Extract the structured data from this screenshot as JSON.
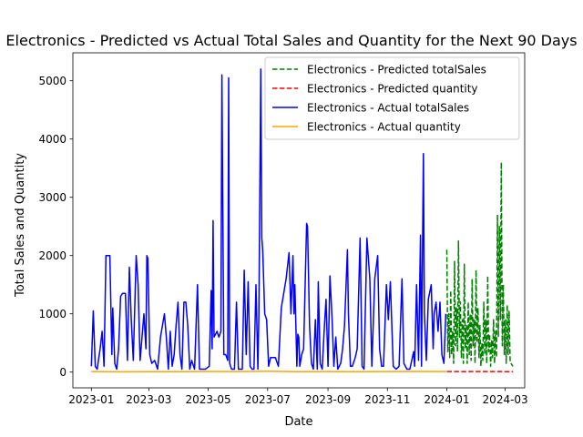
{
  "chart_data": {
    "type": "line",
    "title": "Electronics - Predicted vs Actual Total Sales and Quantity for the Next 90 Days",
    "xlabel": "Date",
    "ylabel": "Total Sales and Quantity",
    "xlim": [
      "2022-12-13",
      "2024-03-21"
    ],
    "ylim": [
      -270,
      5480
    ],
    "x_ticks": [
      "2023-01",
      "2023-03",
      "2023-05",
      "2023-07",
      "2023-09",
      "2023-11",
      "2024-01",
      "2024-03"
    ],
    "y_ticks": [
      0,
      1000,
      2000,
      3000,
      4000,
      5000
    ],
    "grid": false,
    "legend_position": "top-right",
    "series": [
      {
        "name": "Electronics - Predicted totalSales",
        "color": "#008000",
        "style": "dashed",
        "points": [
          [
            "2024-01-01",
            2100
          ],
          [
            "2024-01-02",
            350
          ],
          [
            "2024-01-03",
            1000
          ],
          [
            "2024-01-04",
            250
          ],
          [
            "2024-01-05",
            1400
          ],
          [
            "2024-01-06",
            300
          ],
          [
            "2024-01-07",
            700
          ],
          [
            "2024-01-08",
            150
          ],
          [
            "2024-01-09",
            1900
          ],
          [
            "2024-01-10",
            450
          ],
          [
            "2024-01-11",
            1100
          ],
          [
            "2024-01-12",
            350
          ],
          [
            "2024-01-13",
            2250
          ],
          [
            "2024-01-14",
            600
          ],
          [
            "2024-01-15",
            1200
          ],
          [
            "2024-01-16",
            250
          ],
          [
            "2024-01-17",
            900
          ],
          [
            "2024-01-18",
            150
          ],
          [
            "2024-01-19",
            1850
          ],
          [
            "2024-01-20",
            400
          ],
          [
            "2024-01-21",
            800
          ],
          [
            "2024-01-22",
            150
          ],
          [
            "2024-01-23",
            1200
          ],
          [
            "2024-01-24",
            300
          ],
          [
            "2024-01-25",
            1000
          ],
          [
            "2024-01-26",
            200
          ],
          [
            "2024-01-27",
            1600
          ],
          [
            "2024-01-28",
            450
          ],
          [
            "2024-01-29",
            900
          ],
          [
            "2024-01-30",
            150
          ],
          [
            "2024-01-31",
            1750
          ],
          [
            "2024-02-01",
            500
          ],
          [
            "2024-02-02",
            1100
          ],
          [
            "2024-02-03",
            250
          ],
          [
            "2024-02-04",
            800
          ],
          [
            "2024-02-05",
            100
          ],
          [
            "2024-02-06",
            500
          ],
          [
            "2024-02-07",
            200
          ],
          [
            "2024-02-08",
            1200
          ],
          [
            "2024-02-09",
            300
          ],
          [
            "2024-02-10",
            900
          ],
          [
            "2024-02-11",
            150
          ],
          [
            "2024-02-12",
            1650
          ],
          [
            "2024-02-13",
            350
          ],
          [
            "2024-02-14",
            650
          ],
          [
            "2024-02-15",
            100
          ],
          [
            "2024-02-16",
            550
          ],
          [
            "2024-02-17",
            250
          ],
          [
            "2024-02-18",
            900
          ],
          [
            "2024-02-19",
            150
          ],
          [
            "2024-02-20",
            700
          ],
          [
            "2024-02-21",
            250
          ],
          [
            "2024-02-22",
            2700
          ],
          [
            "2024-02-23",
            600
          ],
          [
            "2024-02-24",
            2500
          ],
          [
            "2024-02-25",
            900
          ],
          [
            "2024-02-26",
            3600
          ],
          [
            "2024-02-27",
            450
          ],
          [
            "2024-02-28",
            1500
          ],
          [
            "2024-02-29",
            300
          ],
          [
            "2024-03-01",
            900
          ],
          [
            "2024-03-02",
            150
          ],
          [
            "2024-03-03",
            1150
          ],
          [
            "2024-03-04",
            300
          ],
          [
            "2024-03-05",
            1050
          ],
          [
            "2024-03-06",
            200
          ],
          [
            "2024-03-07",
            150
          ],
          [
            "2024-03-08",
            120
          ],
          [
            "2024-03-09",
            100
          ]
        ]
      },
      {
        "name": "Electronics - Predicted quantity",
        "color": "#ff0000",
        "style": "dashed",
        "points": [
          [
            "2024-01-01",
            10
          ],
          [
            "2024-01-20",
            8
          ],
          [
            "2024-02-10",
            9
          ],
          [
            "2024-03-01",
            8
          ],
          [
            "2024-03-09",
            7
          ]
        ]
      },
      {
        "name": "Electronics - Actual totalSales",
        "color": "#0000ff",
        "style": "solid",
        "points": [
          [
            "2023-01-01",
            100
          ],
          [
            "2023-01-03",
            1050
          ],
          [
            "2023-01-05",
            100
          ],
          [
            "2023-01-07",
            50
          ],
          [
            "2023-01-10",
            400
          ],
          [
            "2023-01-12",
            700
          ],
          [
            "2023-01-14",
            100
          ],
          [
            "2023-01-16",
            2000
          ],
          [
            "2023-01-20",
            2000
          ],
          [
            "2023-01-22",
            300
          ],
          [
            "2023-01-23",
            1100
          ],
          [
            "2023-01-25",
            150
          ],
          [
            "2023-01-27",
            50
          ],
          [
            "2023-01-29",
            400
          ],
          [
            "2023-01-31",
            1300
          ],
          [
            "2023-02-02",
            1350
          ],
          [
            "2023-02-05",
            1350
          ],
          [
            "2023-02-07",
            200
          ],
          [
            "2023-02-09",
            1800
          ],
          [
            "2023-02-11",
            900
          ],
          [
            "2023-02-13",
            200
          ],
          [
            "2023-02-16",
            2000
          ],
          [
            "2023-02-18",
            1500
          ],
          [
            "2023-02-20",
            200
          ],
          [
            "2023-02-22",
            600
          ],
          [
            "2023-02-24",
            1000
          ],
          [
            "2023-02-26",
            400
          ],
          [
            "2023-02-27",
            2000
          ],
          [
            "2023-02-28",
            1950
          ],
          [
            "2023-03-02",
            300
          ],
          [
            "2023-03-04",
            150
          ],
          [
            "2023-03-07",
            200
          ],
          [
            "2023-03-10",
            50
          ],
          [
            "2023-03-13",
            600
          ],
          [
            "2023-03-17",
            1000
          ],
          [
            "2023-03-19",
            600
          ],
          [
            "2023-03-21",
            50
          ],
          [
            "2023-03-23",
            700
          ],
          [
            "2023-03-25",
            100
          ],
          [
            "2023-03-27",
            300
          ],
          [
            "2023-03-29",
            800
          ],
          [
            "2023-03-31",
            1200
          ],
          [
            "2023-04-02",
            300
          ],
          [
            "2023-04-04",
            50
          ],
          [
            "2023-04-06",
            1200
          ],
          [
            "2023-04-08",
            1200
          ],
          [
            "2023-04-10",
            800
          ],
          [
            "2023-04-12",
            50
          ],
          [
            "2023-04-14",
            200
          ],
          [
            "2023-04-17",
            50
          ],
          [
            "2023-04-20",
            1500
          ],
          [
            "2023-04-22",
            50
          ],
          [
            "2023-04-25",
            50
          ],
          [
            "2023-04-28",
            50
          ],
          [
            "2023-05-02",
            100
          ],
          [
            "2023-05-04",
            1400
          ],
          [
            "2023-05-05",
            400
          ],
          [
            "2023-05-06",
            2600
          ],
          [
            "2023-05-07",
            600
          ],
          [
            "2023-05-10",
            700
          ],
          [
            "2023-05-12",
            600
          ],
          [
            "2023-05-14",
            700
          ],
          [
            "2023-05-15",
            5100
          ],
          [
            "2023-05-17",
            300
          ],
          [
            "2023-05-19",
            300
          ],
          [
            "2023-05-21",
            200
          ],
          [
            "2023-05-22",
            5050
          ],
          [
            "2023-05-23",
            150
          ],
          [
            "2023-05-25",
            50
          ],
          [
            "2023-05-28",
            50
          ],
          [
            "2023-05-30",
            1200
          ],
          [
            "2023-06-01",
            50
          ],
          [
            "2023-06-03",
            50
          ],
          [
            "2023-06-05",
            50
          ],
          [
            "2023-06-07",
            1750
          ],
          [
            "2023-06-09",
            300
          ],
          [
            "2023-06-11",
            1550
          ],
          [
            "2023-06-13",
            100
          ],
          [
            "2023-06-15",
            50
          ],
          [
            "2023-06-17",
            50
          ],
          [
            "2023-06-19",
            1500
          ],
          [
            "2023-06-21",
            50
          ],
          [
            "2023-06-22",
            1000
          ],
          [
            "2023-06-24",
            5200
          ],
          [
            "2023-06-25",
            2300
          ],
          [
            "2023-06-26",
            2100
          ],
          [
            "2023-06-28",
            1000
          ],
          [
            "2023-06-30",
            900
          ],
          [
            "2023-07-02",
            100
          ],
          [
            "2023-07-04",
            250
          ],
          [
            "2023-07-09",
            250
          ],
          [
            "2023-07-12",
            100
          ],
          [
            "2023-07-15",
            1100
          ],
          [
            "2023-07-20",
            1600
          ],
          [
            "2023-07-23",
            2050
          ],
          [
            "2023-07-25",
            1000
          ],
          [
            "2023-07-27",
            2000
          ],
          [
            "2023-07-28",
            1000
          ],
          [
            "2023-07-29",
            1500
          ],
          [
            "2023-07-31",
            100
          ],
          [
            "2023-08-01",
            650
          ],
          [
            "2023-08-02",
            600
          ],
          [
            "2023-08-03",
            100
          ],
          [
            "2023-08-05",
            300
          ],
          [
            "2023-08-07",
            400
          ],
          [
            "2023-08-10",
            2550
          ],
          [
            "2023-08-11",
            2500
          ],
          [
            "2023-08-13",
            800
          ],
          [
            "2023-08-15",
            150
          ],
          [
            "2023-08-17",
            50
          ],
          [
            "2023-08-19",
            900
          ],
          [
            "2023-08-21",
            50
          ],
          [
            "2023-08-22",
            1550
          ],
          [
            "2023-08-24",
            150
          ],
          [
            "2023-08-26",
            50
          ],
          [
            "2023-08-28",
            700
          ],
          [
            "2023-08-30",
            1250
          ],
          [
            "2023-09-01",
            100
          ],
          [
            "2023-09-03",
            1650
          ],
          [
            "2023-09-05",
            1000
          ],
          [
            "2023-09-07",
            100
          ],
          [
            "2023-09-09",
            600
          ],
          [
            "2023-09-11",
            50
          ],
          [
            "2023-09-14",
            150
          ],
          [
            "2023-09-16",
            400
          ],
          [
            "2023-09-18",
            800
          ],
          [
            "2023-09-21",
            2100
          ],
          [
            "2023-09-22",
            1000
          ],
          [
            "2023-09-24",
            100
          ],
          [
            "2023-09-26",
            100
          ],
          [
            "2023-09-29",
            250
          ],
          [
            "2023-10-01",
            400
          ],
          [
            "2023-10-04",
            2300
          ],
          [
            "2023-10-06",
            100
          ],
          [
            "2023-10-08",
            50
          ],
          [
            "2023-10-11",
            2300
          ],
          [
            "2023-10-14",
            1600
          ],
          [
            "2023-10-16",
            100
          ],
          [
            "2023-10-19",
            1600
          ],
          [
            "2023-10-22",
            2000
          ],
          [
            "2023-10-24",
            400
          ],
          [
            "2023-10-26",
            100
          ],
          [
            "2023-10-28",
            100
          ],
          [
            "2023-10-31",
            1500
          ],
          [
            "2023-11-02",
            900
          ],
          [
            "2023-11-04",
            1550
          ],
          [
            "2023-11-07",
            100
          ],
          [
            "2023-11-10",
            50
          ],
          [
            "2023-11-13",
            100
          ],
          [
            "2023-11-16",
            1600
          ],
          [
            "2023-11-18",
            150
          ],
          [
            "2023-11-21",
            50
          ],
          [
            "2023-11-24",
            50
          ],
          [
            "2023-11-26",
            200
          ],
          [
            "2023-11-28",
            350
          ],
          [
            "2023-11-29",
            100
          ],
          [
            "2023-12-01",
            1500
          ],
          [
            "2023-12-03",
            200
          ],
          [
            "2023-12-05",
            2350
          ],
          [
            "2023-12-06",
            100
          ],
          [
            "2023-12-08",
            3750
          ],
          [
            "2023-12-09",
            1000
          ],
          [
            "2023-12-11",
            200
          ],
          [
            "2023-12-13",
            1250
          ],
          [
            "2023-12-16",
            1500
          ],
          [
            "2023-12-18",
            400
          ],
          [
            "2023-12-19",
            1000
          ],
          [
            "2023-12-21",
            1200
          ],
          [
            "2023-12-23",
            700
          ],
          [
            "2023-12-25",
            1200
          ],
          [
            "2023-12-27",
            300
          ],
          [
            "2023-12-29",
            150
          ],
          [
            "2023-12-31",
            1000
          ]
        ]
      },
      {
        "name": "Electronics - Actual quantity",
        "color": "#ffa500",
        "style": "solid",
        "points": [
          [
            "2023-01-01",
            10
          ],
          [
            "2023-02-01",
            5
          ],
          [
            "2023-03-01",
            8
          ],
          [
            "2023-04-01",
            6
          ],
          [
            "2023-05-01",
            12
          ],
          [
            "2023-06-01",
            9
          ],
          [
            "2023-07-01",
            15
          ],
          [
            "2023-08-01",
            8
          ],
          [
            "2023-09-01",
            10
          ],
          [
            "2023-10-01",
            7
          ],
          [
            "2023-11-01",
            9
          ],
          [
            "2023-12-01",
            11
          ],
          [
            "2023-12-31",
            10
          ]
        ]
      }
    ]
  }
}
